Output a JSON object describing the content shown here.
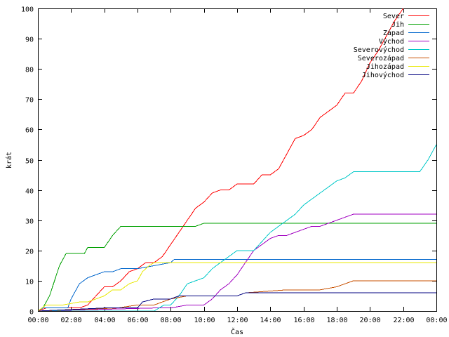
{
  "chart_data": {
    "type": "line",
    "title": "",
    "xlabel": "Čas",
    "ylabel": "krát",
    "xlim": [
      0,
      24
    ],
    "ylim": [
      0,
      100
    ],
    "x_ticks": [
      0,
      2,
      4,
      6,
      8,
      10,
      12,
      14,
      16,
      18,
      20,
      22,
      24
    ],
    "x_tick_labels": [
      "00:00",
      "02:00",
      "04:00",
      "06:00",
      "08:00",
      "10:00",
      "12:00",
      "14:00",
      "16:00",
      "18:00",
      "20:00",
      "22:00",
      "00:00"
    ],
    "y_ticks": [
      0,
      10,
      20,
      30,
      40,
      50,
      60,
      70,
      80,
      90,
      100
    ],
    "y_tick_labels": [
      "0",
      "10",
      "20",
      "30",
      "40",
      "50",
      "60",
      "70",
      "80",
      "90",
      "100"
    ],
    "grid": false,
    "legend_position": "top-right",
    "series": [
      {
        "name": "Sever",
        "color": "#ff0000",
        "points": [
          [
            0,
            0
          ],
          [
            0.5,
            1
          ],
          [
            2.5,
            1
          ],
          [
            3,
            2
          ],
          [
            3.5,
            5
          ],
          [
            4,
            8
          ],
          [
            4.5,
            8
          ],
          [
            5,
            10
          ],
          [
            5.5,
            13
          ],
          [
            6,
            14
          ],
          [
            6.5,
            16
          ],
          [
            7,
            16
          ],
          [
            7.5,
            18
          ],
          [
            8,
            22
          ],
          [
            8.5,
            26
          ],
          [
            9,
            30
          ],
          [
            9.5,
            34
          ],
          [
            10,
            36
          ],
          [
            10.5,
            39
          ],
          [
            11,
            40
          ],
          [
            11.5,
            40
          ],
          [
            12,
            42
          ],
          [
            13,
            42
          ],
          [
            13.5,
            45
          ],
          [
            14,
            45
          ],
          [
            14.5,
            47
          ],
          [
            15,
            52
          ],
          [
            15.5,
            57
          ],
          [
            16,
            58
          ],
          [
            16.5,
            60
          ],
          [
            17,
            64
          ],
          [
            17.5,
            66
          ],
          [
            18,
            68
          ],
          [
            18.5,
            72
          ],
          [
            19,
            72
          ],
          [
            19.5,
            76
          ],
          [
            20,
            82
          ],
          [
            20.5,
            86
          ],
          [
            21,
            91
          ],
          [
            21.5,
            96
          ],
          [
            22,
            100
          ]
        ]
      },
      {
        "name": "Jih",
        "color": "#00a000",
        "points": [
          [
            0,
            0
          ],
          [
            0.3,
            1
          ],
          [
            0.7,
            5
          ],
          [
            1,
            10
          ],
          [
            1.3,
            15
          ],
          [
            1.7,
            19
          ],
          [
            2.8,
            19
          ],
          [
            3,
            21
          ],
          [
            4,
            21
          ],
          [
            4.5,
            25
          ],
          [
            5,
            28
          ],
          [
            9,
            28
          ],
          [
            9.5,
            28
          ],
          [
            10,
            29
          ],
          [
            24,
            29
          ]
        ]
      },
      {
        "name": "Západ",
        "color": "#0066cc",
        "points": [
          [
            0,
            0
          ],
          [
            0.3,
            1
          ],
          [
            1.8,
            1
          ],
          [
            2,
            4
          ],
          [
            2.5,
            9
          ],
          [
            3,
            11
          ],
          [
            3.5,
            12
          ],
          [
            4,
            13
          ],
          [
            4.5,
            13
          ],
          [
            5,
            14
          ],
          [
            6,
            14
          ],
          [
            7,
            15
          ],
          [
            8,
            16
          ],
          [
            8.2,
            17
          ],
          [
            24,
            17
          ]
        ]
      },
      {
        "name": "Východ",
        "color": "#a000c0",
        "points": [
          [
            0,
            0
          ],
          [
            7,
            1
          ],
          [
            8,
            1
          ],
          [
            9,
            2
          ],
          [
            10,
            2
          ],
          [
            10.5,
            4
          ],
          [
            11,
            7
          ],
          [
            11.5,
            9
          ],
          [
            12,
            12
          ],
          [
            12.5,
            16
          ],
          [
            13,
            20
          ],
          [
            13.5,
            22
          ],
          [
            14,
            24
          ],
          [
            14.5,
            25
          ],
          [
            15,
            25
          ],
          [
            15.5,
            26
          ],
          [
            16,
            27
          ],
          [
            16.5,
            28
          ],
          [
            17,
            28
          ],
          [
            18,
            30
          ],
          [
            19,
            32
          ],
          [
            24,
            32
          ]
        ]
      },
      {
        "name": "Severovýchod",
        "color": "#00c8c8",
        "points": [
          [
            0,
            0
          ],
          [
            7,
            0
          ],
          [
            7.3,
            1
          ],
          [
            7.6,
            2
          ],
          [
            8,
            2
          ],
          [
            8.5,
            5
          ],
          [
            9,
            9
          ],
          [
            9.5,
            10
          ],
          [
            10,
            11
          ],
          [
            10.5,
            14
          ],
          [
            11,
            16
          ],
          [
            11.5,
            18
          ],
          [
            12,
            20
          ],
          [
            13,
            20
          ],
          [
            13.5,
            23
          ],
          [
            14,
            26
          ],
          [
            14.5,
            28
          ],
          [
            15,
            30
          ],
          [
            15.5,
            32
          ],
          [
            16,
            35
          ],
          [
            16.5,
            37
          ],
          [
            17,
            39
          ],
          [
            17.5,
            41
          ],
          [
            18,
            43
          ],
          [
            18.5,
            44
          ],
          [
            19,
            46
          ],
          [
            21,
            46
          ],
          [
            23,
            46
          ],
          [
            23.5,
            50
          ],
          [
            24,
            55
          ]
        ]
      },
      {
        "name": "Severozápad",
        "color": "#c85000",
        "points": [
          [
            0,
            0
          ],
          [
            4.8,
            1
          ],
          [
            6,
            2
          ],
          [
            7,
            2
          ],
          [
            7.5,
            3
          ],
          [
            8,
            4
          ],
          [
            9,
            5
          ],
          [
            12,
            5
          ],
          [
            12.5,
            6
          ],
          [
            15,
            7
          ],
          [
            17,
            7
          ],
          [
            18,
            8
          ],
          [
            18.5,
            9
          ],
          [
            19,
            10
          ],
          [
            24,
            10
          ]
        ]
      },
      {
        "name": "Jihozápad",
        "color": "#e8e800",
        "points": [
          [
            0,
            0
          ],
          [
            0.5,
            2
          ],
          [
            1.5,
            2
          ],
          [
            2.5,
            3
          ],
          [
            3,
            3
          ],
          [
            3.5,
            4
          ],
          [
            4,
            5
          ],
          [
            4.5,
            7
          ],
          [
            5,
            7
          ],
          [
            5.5,
            9
          ],
          [
            6,
            10
          ],
          [
            6.3,
            13
          ],
          [
            6.7,
            15
          ],
          [
            7,
            16
          ],
          [
            24,
            16
          ]
        ]
      },
      {
        "name": "Jihovýchod",
        "color": "#000080",
        "points": [
          [
            0,
            0
          ],
          [
            4,
            1
          ],
          [
            6,
            1
          ],
          [
            6.3,
            3
          ],
          [
            7,
            4
          ],
          [
            8,
            4
          ],
          [
            8.5,
            5
          ],
          [
            12,
            5
          ],
          [
            12.5,
            6
          ],
          [
            24,
            6
          ]
        ]
      }
    ]
  }
}
